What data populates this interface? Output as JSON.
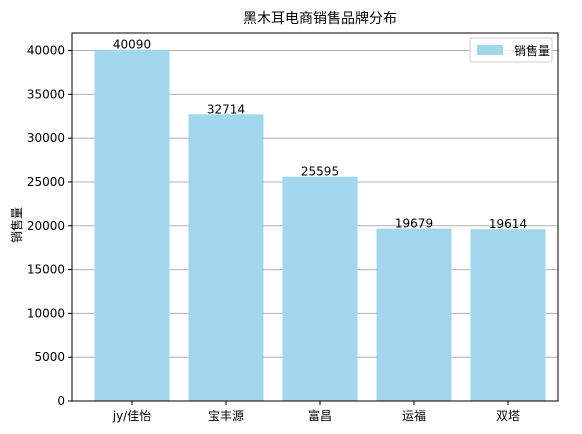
{
  "chart_data": {
    "type": "bar",
    "title": "黑木耳电商销售品牌分布",
    "xlabel": "",
    "ylabel": "销售量",
    "categories": [
      "jy/佳怡",
      "宝丰源",
      "富昌",
      "运福",
      "双塔"
    ],
    "series": [
      {
        "name": "销售量",
        "values": [
          40090,
          32714,
          25595,
          19679,
          19614
        ]
      }
    ],
    "ylim": [
      0,
      42000
    ],
    "yticks": [
      0,
      5000,
      10000,
      15000,
      20000,
      25000,
      30000,
      35000,
      40000
    ],
    "grid": "y",
    "legend": "top-right",
    "bar_color": "#a1d6ec",
    "grid_color": "#b0b0b0"
  }
}
